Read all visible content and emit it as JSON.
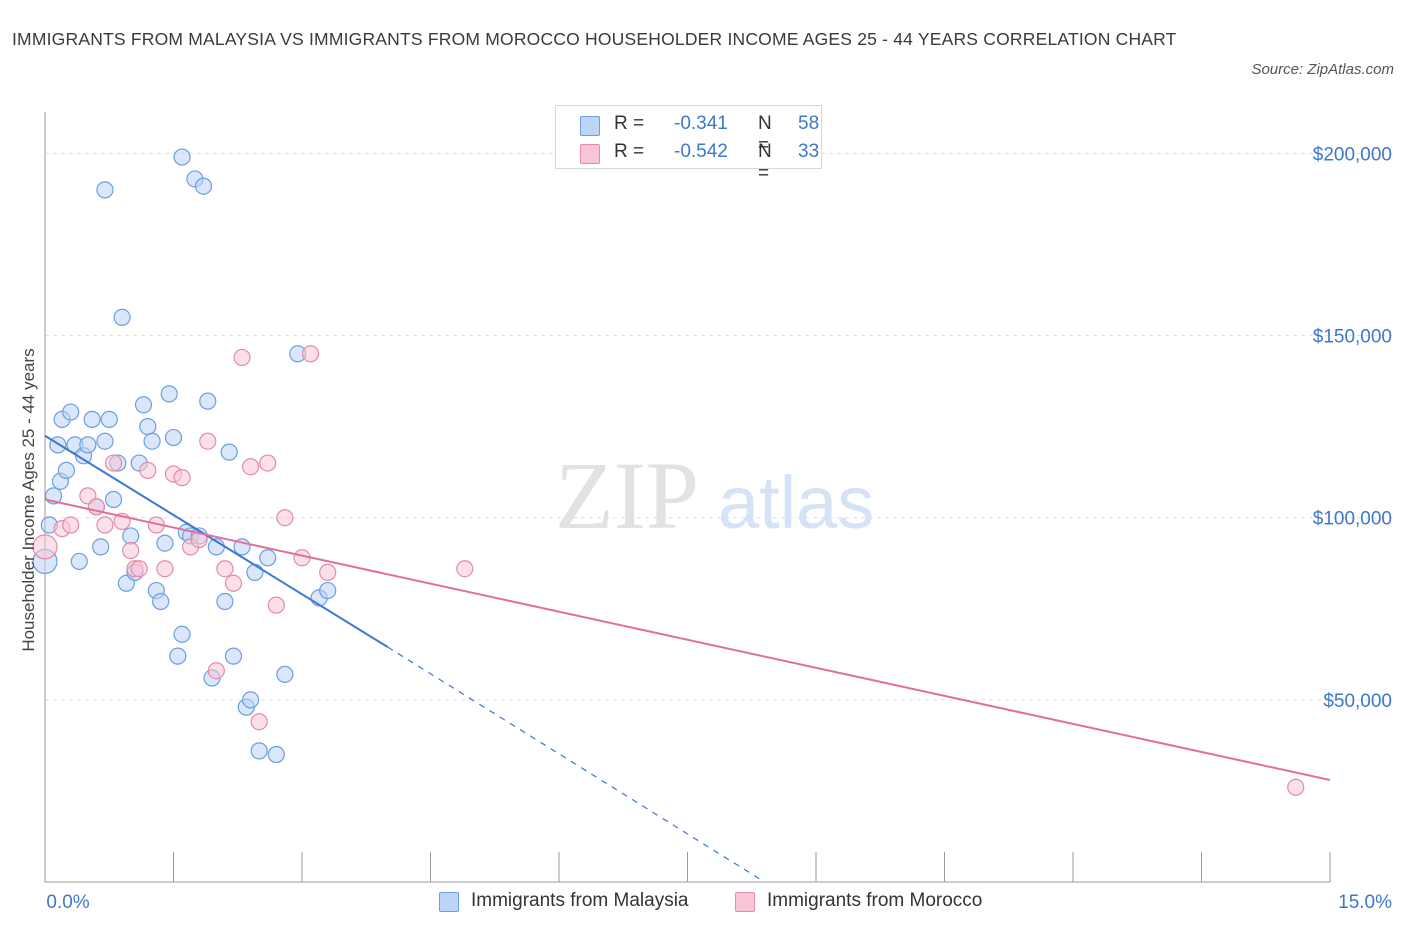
{
  "title": "IMMIGRANTS FROM MALAYSIA VS IMMIGRANTS FROM MOROCCO HOUSEHOLDER INCOME AGES 25 - 44 YEARS CORRELATION CHART",
  "source": "Source: ZipAtlas.com",
  "watermark": {
    "zip": "ZIP",
    "atlas": "atlas"
  },
  "colors": {
    "malaysia_fill": "#bcd4f5",
    "malaysia_stroke": "#6a9fe0",
    "malaysia_line": "#3a78d4",
    "morocco_fill": "#f8c6d6",
    "morocco_stroke": "#e58aaa",
    "morocco_line": "#e0709a",
    "tick_label": "#3e78c8",
    "grid": "#dddddd"
  },
  "legend": {
    "malaysia": {
      "r_label": "R =",
      "r_value": "-0.341",
      "n_label": "N =",
      "n_value": "58"
    },
    "morocco": {
      "r_label": "R =",
      "r_value": "-0.542",
      "n_label": "N =",
      "n_value": "33"
    }
  },
  "chart_data": {
    "type": "scatter",
    "title": "IMMIGRANTS FROM MALAYSIA VS IMMIGRANTS FROM MOROCCO HOUSEHOLDER INCOME AGES 25 - 44 YEARS CORRELATION CHART",
    "xlabel": "",
    "ylabel": "Householder Income Ages 25 - 44 years",
    "xlim": [
      0,
      15
    ],
    "ylim": [
      0,
      200000
    ],
    "x_tick_labels": [
      "0.0%",
      "15.0%"
    ],
    "y_ticks": [
      50000,
      100000,
      150000,
      200000
    ],
    "y_tick_labels": [
      "$50,000",
      "$100,000",
      "$150,000",
      "$200,000"
    ],
    "grid": "horizontal dashed",
    "series": [
      {
        "name": "Immigrants from Malaysia",
        "r": -0.341,
        "n": 58,
        "trend": {
          "x": [
            0.0,
            4.0
          ],
          "y": [
            122500,
            64500
          ],
          "dashed_to": [
            8.4,
            0
          ]
        },
        "points": [
          [
            0.0,
            88000
          ],
          [
            0.05,
            98000
          ],
          [
            0.1,
            106000
          ],
          [
            0.15,
            120000
          ],
          [
            0.18,
            110000
          ],
          [
            0.2,
            127000
          ],
          [
            0.25,
            113000
          ],
          [
            0.3,
            129000
          ],
          [
            0.35,
            120000
          ],
          [
            0.4,
            88000
          ],
          [
            0.45,
            117000
          ],
          [
            0.5,
            120000
          ],
          [
            0.55,
            127000
          ],
          [
            0.6,
            103000
          ],
          [
            0.65,
            92000
          ],
          [
            0.7,
            121000
          ],
          [
            0.75,
            127000
          ],
          [
            0.8,
            105000
          ],
          [
            0.85,
            115000
          ],
          [
            0.9,
            155000
          ],
          [
            0.95,
            82000
          ],
          [
            1.0,
            95000
          ],
          [
            1.05,
            85000
          ],
          [
            1.1,
            115000
          ],
          [
            1.15,
            131000
          ],
          [
            1.2,
            125000
          ],
          [
            1.25,
            121000
          ],
          [
            1.3,
            80000
          ],
          [
            1.35,
            77000
          ],
          [
            1.4,
            93000
          ],
          [
            1.45,
            134000
          ],
          [
            1.5,
            122000
          ],
          [
            1.55,
            62000
          ],
          [
            1.6,
            199000
          ],
          [
            1.65,
            96000
          ],
          [
            1.7,
            95000
          ],
          [
            1.75,
            193000
          ],
          [
            1.8,
            95000
          ],
          [
            1.85,
            191000
          ],
          [
            1.9,
            132000
          ],
          [
            1.95,
            56000
          ],
          [
            2.0,
            92000
          ],
          [
            2.1,
            77000
          ],
          [
            2.15,
            118000
          ],
          [
            2.2,
            62000
          ],
          [
            2.3,
            92000
          ],
          [
            2.35,
            48000
          ],
          [
            2.4,
            50000
          ],
          [
            2.45,
            85000
          ],
          [
            2.5,
            36000
          ],
          [
            2.6,
            89000
          ],
          [
            2.7,
            35000
          ],
          [
            2.8,
            57000
          ],
          [
            2.95,
            145000
          ],
          [
            3.2,
            78000
          ],
          [
            3.3,
            80000
          ],
          [
            1.6,
            68000
          ],
          [
            0.7,
            190000
          ]
        ]
      },
      {
        "name": "Immigrants from Morocco",
        "r": -0.542,
        "n": 33,
        "trend": {
          "x": [
            0.0,
            15.0
          ],
          "y": [
            105000,
            28000
          ]
        },
        "points": [
          [
            0.0,
            92000
          ],
          [
            0.2,
            97000
          ],
          [
            0.3,
            98000
          ],
          [
            0.5,
            106000
          ],
          [
            0.6,
            103000
          ],
          [
            0.7,
            98000
          ],
          [
            0.8,
            115000
          ],
          [
            0.9,
            99000
          ],
          [
            1.0,
            91000
          ],
          [
            1.05,
            86000
          ],
          [
            1.1,
            86000
          ],
          [
            1.2,
            113000
          ],
          [
            1.3,
            98000
          ],
          [
            1.4,
            86000
          ],
          [
            1.5,
            112000
          ],
          [
            1.6,
            111000
          ],
          [
            1.7,
            92000
          ],
          [
            1.8,
            94000
          ],
          [
            1.9,
            121000
          ],
          [
            2.0,
            58000
          ],
          [
            2.1,
            86000
          ],
          [
            2.2,
            82000
          ],
          [
            2.3,
            144000
          ],
          [
            2.4,
            114000
          ],
          [
            2.5,
            44000
          ],
          [
            2.6,
            115000
          ],
          [
            2.7,
            76000
          ],
          [
            2.8,
            100000
          ],
          [
            3.0,
            89000
          ],
          [
            3.1,
            145000
          ],
          [
            3.3,
            85000
          ],
          [
            4.9,
            86000
          ],
          [
            14.6,
            26000
          ]
        ]
      }
    ]
  },
  "bottom_legend": [
    {
      "label": "Immigrants from Malaysia"
    },
    {
      "label": "Immigrants from Morocco"
    }
  ]
}
